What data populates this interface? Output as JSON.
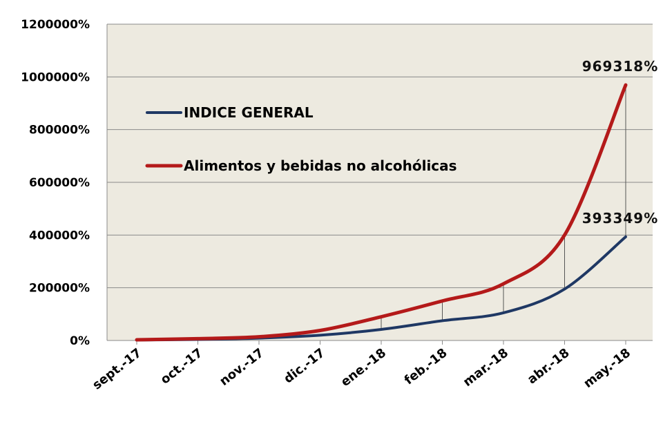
{
  "chart_data": {
    "type": "line",
    "categories": [
      "sept.-17",
      "oct.-17",
      "nov.-17",
      "dic.-17",
      "ene.-18",
      "feb.-18",
      "mar.-18",
      "abr.-18",
      "may.-18"
    ],
    "ylim": [
      0,
      1200000
    ],
    "yticks": [
      0,
      200000,
      400000,
      600000,
      800000,
      1000000,
      1200000
    ],
    "ytick_labels": [
      "0%",
      "200000%",
      "400000%",
      "600000%",
      "800000%",
      "1000000%",
      "1200000%"
    ],
    "grid": true,
    "legend_position": "upper-left",
    "plot_background": "#edeae0",
    "series": [
      {
        "name": "INDICE GENERAL",
        "color": "#1f3864",
        "values": [
          1500,
          4000,
          9000,
          20000,
          42000,
          75000,
          105000,
          195000,
          393349
        ]
      },
      {
        "name": "Alimentos y bebidas no alcohólicas",
        "color": "#b41a1a",
        "values": [
          2500,
          7000,
          14000,
          38000,
          90000,
          150000,
          215000,
          400000,
          969318
        ]
      }
    ],
    "data_labels": [
      {
        "text": "969318%",
        "category": "may.-18",
        "value": 969318
      },
      {
        "text": "393349%",
        "category": "may.-18",
        "value": 393349
      }
    ]
  }
}
